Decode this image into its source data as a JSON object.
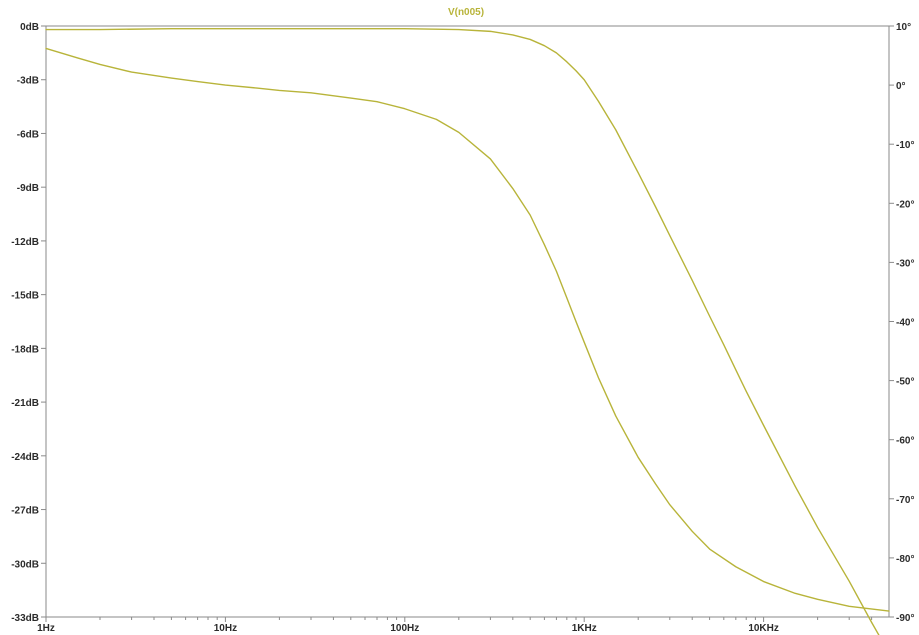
{
  "window": {
    "background": "#ffffff",
    "axis_color": "#8a8a8a",
    "tick_color": "#8a8a8a"
  },
  "chart_data": {
    "type": "line",
    "title": "V(n005)",
    "title_color": "#b8b43a",
    "x_axis": {
      "scale": "log",
      "range": [
        1,
        50000
      ],
      "unit": "Hz",
      "ticks": [
        {
          "value": 1,
          "label": "1Hz"
        },
        {
          "value": 10,
          "label": "10Hz"
        },
        {
          "value": 100,
          "label": "100Hz"
        },
        {
          "value": 1000,
          "label": "1KHz"
        },
        {
          "value": 10000,
          "label": "10KHz"
        }
      ]
    },
    "y_axis_left": {
      "unit": "dB",
      "range": [
        -33,
        0
      ],
      "ticks": [
        {
          "value": 0,
          "label": "0dB"
        },
        {
          "value": -3,
          "label": "-3dB"
        },
        {
          "value": -6,
          "label": "-6dB"
        },
        {
          "value": -9,
          "label": "-9dB"
        },
        {
          "value": -12,
          "label": "-12dB"
        },
        {
          "value": -15,
          "label": "-15dB"
        },
        {
          "value": -18,
          "label": "-18dB"
        },
        {
          "value": -21,
          "label": "-21dB"
        },
        {
          "value": -24,
          "label": "-24dB"
        },
        {
          "value": -27,
          "label": "-27dB"
        },
        {
          "value": -30,
          "label": "-30dB"
        },
        {
          "value": -33,
          "label": "-33dB"
        }
      ]
    },
    "y_axis_right": {
      "unit": "deg",
      "range": [
        -90,
        10
      ],
      "ticks": [
        {
          "value": 10,
          "label": "10°"
        },
        {
          "value": 0,
          "label": "0°"
        },
        {
          "value": -10,
          "label": "-10°"
        },
        {
          "value": -20,
          "label": "-20°"
        },
        {
          "value": -30,
          "label": "-30°"
        },
        {
          "value": -40,
          "label": "-40°"
        },
        {
          "value": -50,
          "label": "-50°"
        },
        {
          "value": -60,
          "label": "-60°"
        },
        {
          "value": -70,
          "label": "-70°"
        },
        {
          "value": -80,
          "label": "-80°"
        },
        {
          "value": -90,
          "label": "-90°"
        }
      ]
    },
    "grid": false,
    "series": [
      {
        "axis": "left",
        "color": "#b8b43a",
        "points": [
          [
            1,
            -0.2
          ],
          [
            2,
            -0.2
          ],
          [
            5,
            -0.15
          ],
          [
            10,
            -0.15
          ],
          [
            20,
            -0.15
          ],
          [
            50,
            -0.15
          ],
          [
            100,
            -0.15
          ],
          [
            200,
            -0.2
          ],
          [
            300,
            -0.3
          ],
          [
            400,
            -0.5
          ],
          [
            500,
            -0.75
          ],
          [
            600,
            -1.1
          ],
          [
            700,
            -1.5
          ],
          [
            800,
            -2.0
          ],
          [
            900,
            -2.5
          ],
          [
            1000,
            -3.0
          ],
          [
            1200,
            -4.2
          ],
          [
            1500,
            -5.8
          ],
          [
            2000,
            -8.2
          ],
          [
            2500,
            -10.1
          ],
          [
            3000,
            -11.7
          ],
          [
            4000,
            -14.2
          ],
          [
            5000,
            -16.2
          ],
          [
            6000,
            -17.8
          ],
          [
            7000,
            -19.2
          ],
          [
            8000,
            -20.4
          ],
          [
            10000,
            -22.3
          ],
          [
            15000,
            -25.7
          ],
          [
            20000,
            -28.0
          ],
          [
            30000,
            -31.0
          ],
          [
            40000,
            -33.3
          ],
          [
            50000,
            -35.0
          ]
        ]
      },
      {
        "axis": "right",
        "color": "#b8b43a",
        "points": [
          [
            1,
            6.2
          ],
          [
            1.5,
            4.6
          ],
          [
            2,
            3.5
          ],
          [
            3,
            2.2
          ],
          [
            5,
            1.2
          ],
          [
            7,
            0.6
          ],
          [
            10,
            0.0
          ],
          [
            15,
            -0.5
          ],
          [
            20,
            -0.9
          ],
          [
            30,
            -1.3
          ],
          [
            50,
            -2.2
          ],
          [
            70,
            -2.8
          ],
          [
            100,
            -4.0
          ],
          [
            150,
            -5.8
          ],
          [
            200,
            -8.0
          ],
          [
            300,
            -12.5
          ],
          [
            400,
            -17.5
          ],
          [
            500,
            -22.0
          ],
          [
            600,
            -27.0
          ],
          [
            700,
            -31.5
          ],
          [
            800,
            -36.0
          ],
          [
            900,
            -40.0
          ],
          [
            1000,
            -43.5
          ],
          [
            1200,
            -49.5
          ],
          [
            1500,
            -56.0
          ],
          [
            2000,
            -63.0
          ],
          [
            2500,
            -67.5
          ],
          [
            3000,
            -71.0
          ],
          [
            4000,
            -75.5
          ],
          [
            5000,
            -78.5
          ],
          [
            7000,
            -81.5
          ],
          [
            10000,
            -84.0
          ],
          [
            15000,
            -86.0
          ],
          [
            20000,
            -87.0
          ],
          [
            30000,
            -88.2
          ],
          [
            50000,
            -89.0
          ]
        ]
      }
    ]
  }
}
